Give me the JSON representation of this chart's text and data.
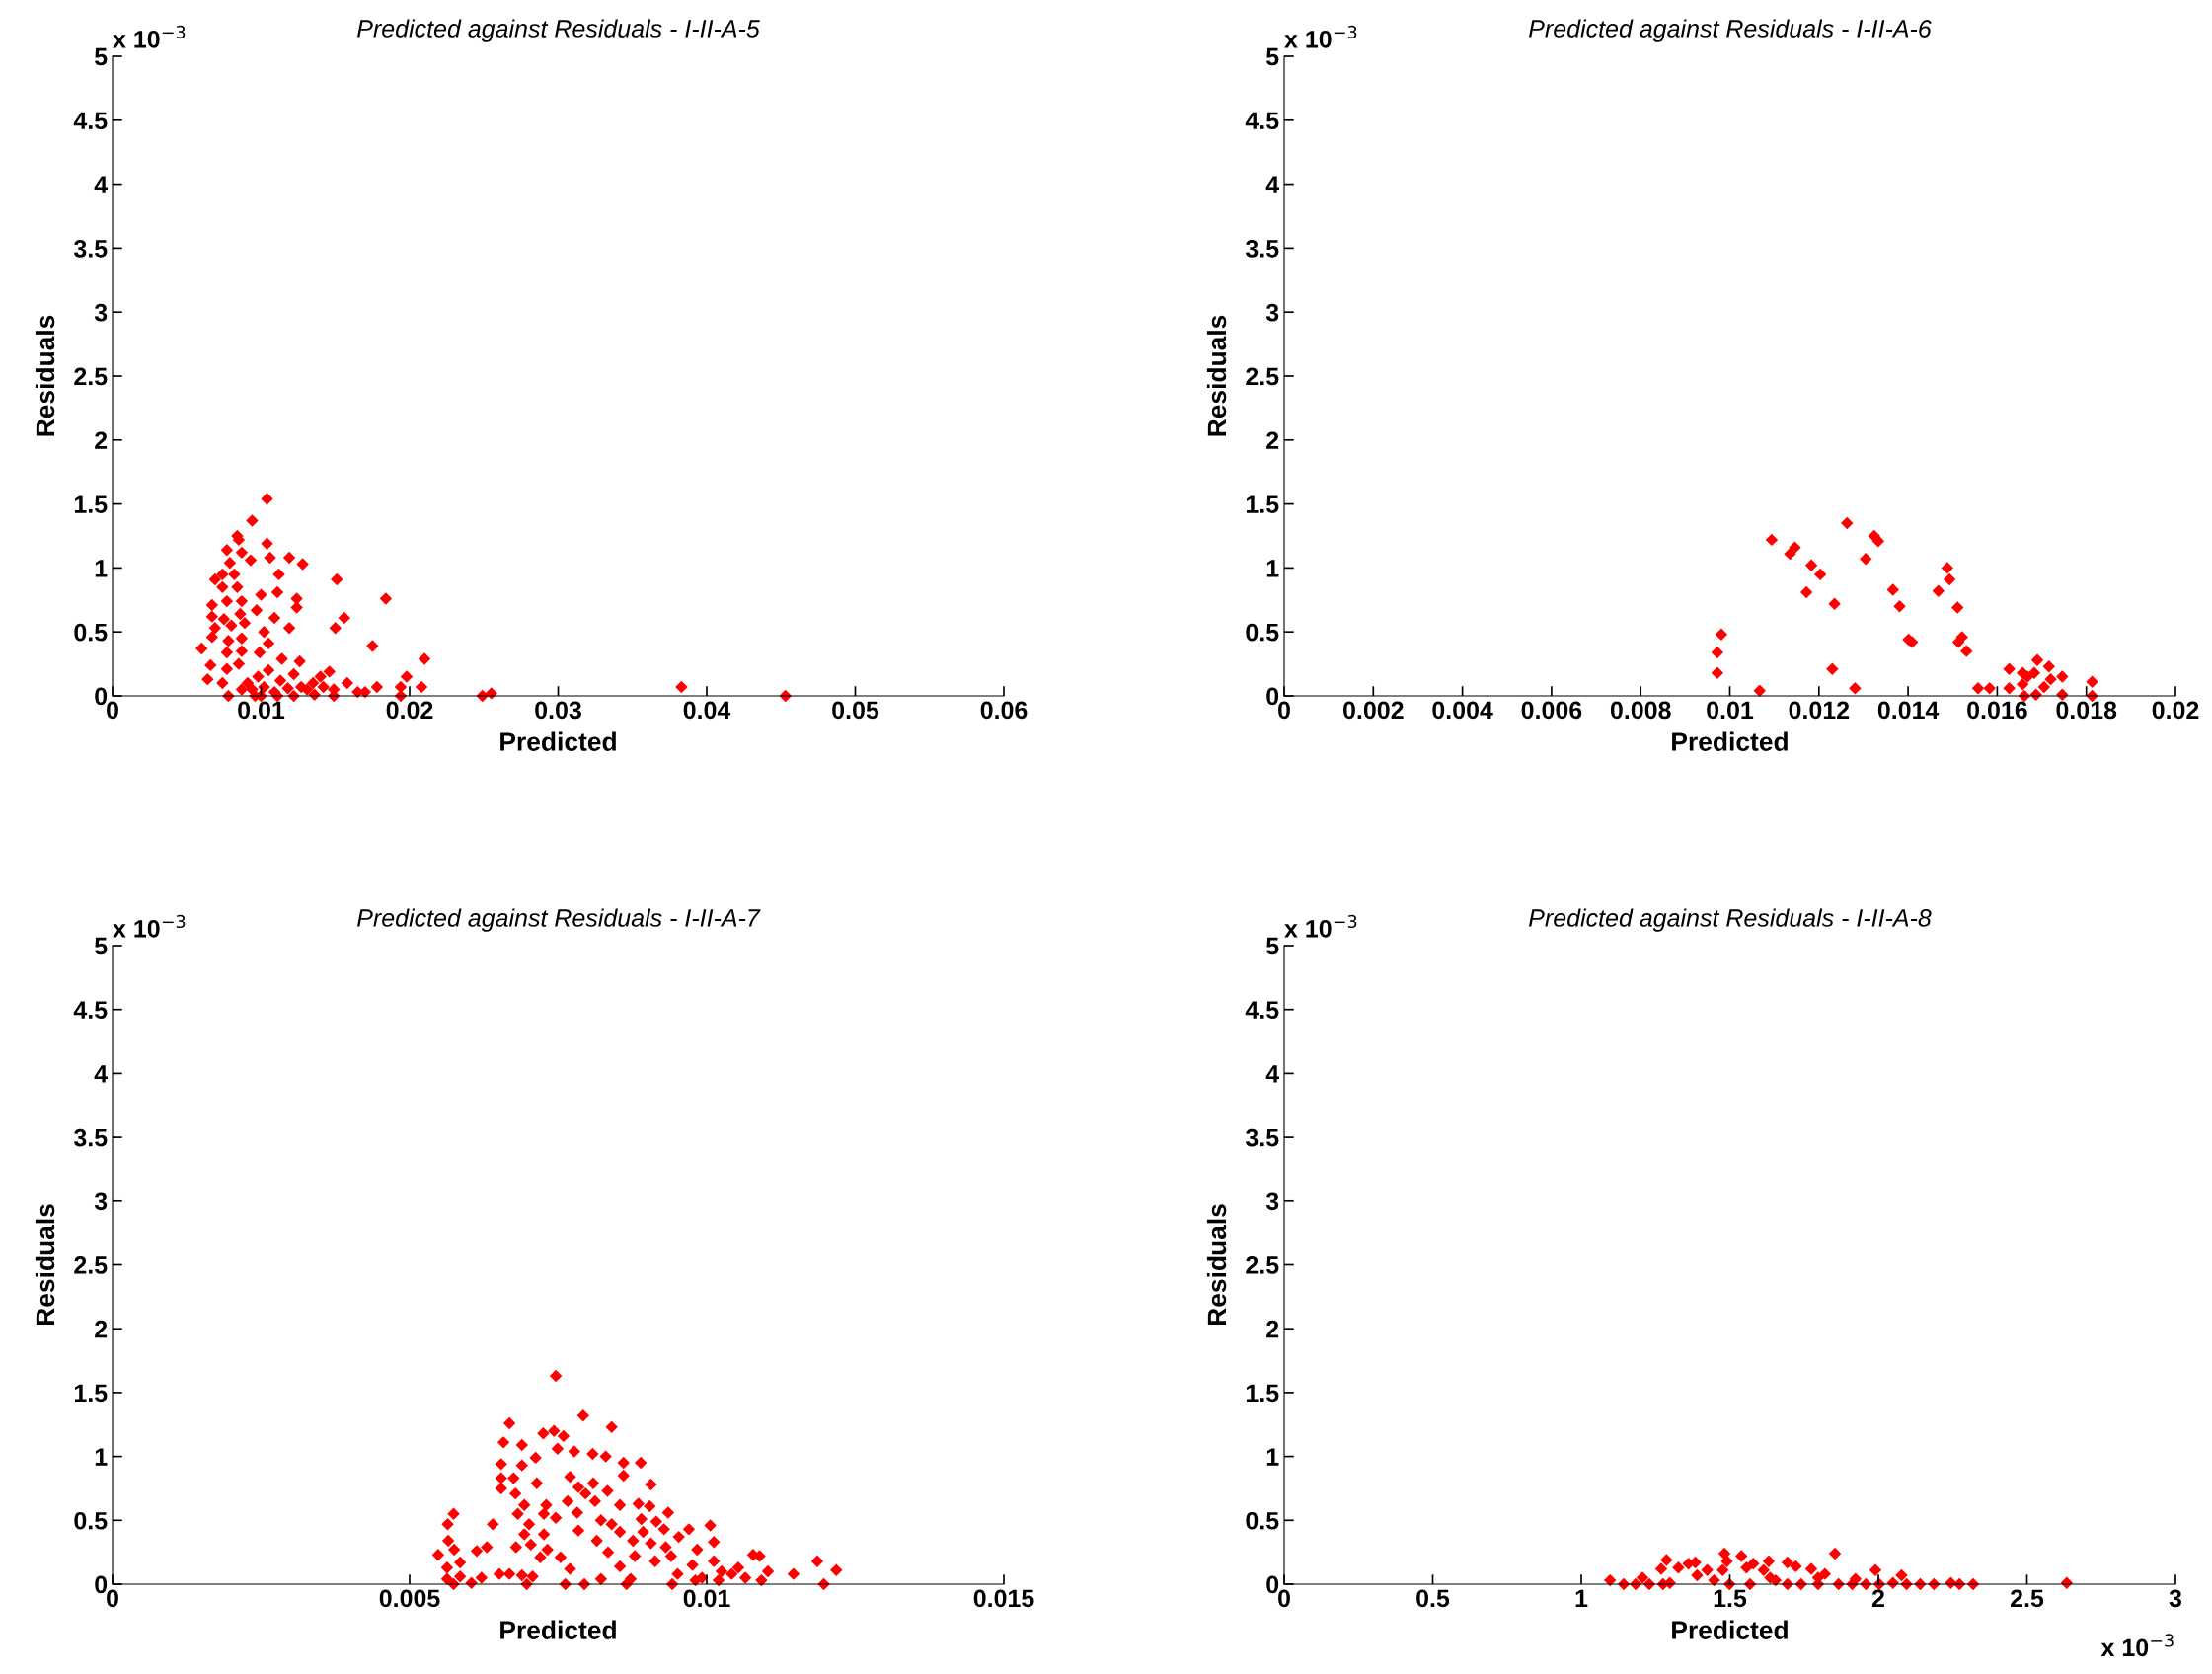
{
  "chart_data": [
    {
      "type": "scatter",
      "title": "Predicted against Residuals - I-II-A-5",
      "xlabel": "Predicted",
      "ylabel": "Residuals",
      "annotations": [
        "x 10$^{−3}$"
      ],
      "color": "#ff0000",
      "marker": "diamond",
      "grid": false,
      "xlim": [
        0,
        0.06
      ],
      "xticks": [
        0,
        0.01,
        0.02,
        0.03,
        0.04,
        0.05,
        0.06
      ],
      "ylim": [
        0,
        5
      ],
      "yticks": [
        0,
        0.5,
        1,
        1.5,
        2,
        2.5,
        3,
        3.5,
        4,
        4.5,
        5
      ],
      "x": [
        0.0104,
        0.0094,
        0.0084,
        0.0085,
        0.0104,
        0.0077,
        0.0087,
        0.0079,
        0.0093,
        0.0106,
        0.0119,
        0.0128,
        0.0069,
        0.0074,
        0.0082,
        0.0112,
        0.0151,
        0.0074,
        0.0084,
        0.01,
        0.0111,
        0.0124,
        0.0124,
        0.0184,
        0.0067,
        0.0077,
        0.0087,
        0.0067,
        0.0075,
        0.0086,
        0.0097,
        0.0109,
        0.0156,
        0.0069,
        0.008,
        0.0089,
        0.0119,
        0.015,
        0.0102,
        0.0067,
        0.0078,
        0.0087,
        0.006,
        0.0105,
        0.0175,
        0.0077,
        0.0087,
        0.0099,
        0.0066,
        0.0085,
        0.0114,
        0.0126,
        0.021,
        0.0077,
        0.0064,
        0.0146,
        0.0198,
        0.0074,
        0.0078,
        0.0091,
        0.0098,
        0.0105,
        0.0113,
        0.0122,
        0.0127,
        0.0135,
        0.014,
        0.0149,
        0.0096,
        0.0109,
        0.0122,
        0.0136,
        0.0149,
        0.0158,
        0.0165,
        0.017,
        0.0178,
        0.0194,
        0.0208,
        0.0194,
        0.0249,
        0.0255,
        0.0383,
        0.0453,
        0.0094,
        0.0102,
        0.0118,
        0.0131,
        0.0142,
        0.0087,
        0.01,
        0.0111
      ],
      "values": [
        1.54,
        1.37,
        1.25,
        1.22,
        1.19,
        1.14,
        1.12,
        1.04,
        1.06,
        1.08,
        1.08,
        1.03,
        0.91,
        0.95,
        0.95,
        0.95,
        0.91,
        0.85,
        0.85,
        0.79,
        0.81,
        0.76,
        0.69,
        0.76,
        0.71,
        0.74,
        0.74,
        0.62,
        0.6,
        0.64,
        0.67,
        0.61,
        0.61,
        0.53,
        0.55,
        0.57,
        0.53,
        0.53,
        0.5,
        0.46,
        0.43,
        0.45,
        0.37,
        0.41,
        0.39,
        0.34,
        0.35,
        0.34,
        0.24,
        0.25,
        0.29,
        0.27,
        0.29,
        0.21,
        0.13,
        0.19,
        0.15,
        0.1,
        0,
        0.1,
        0.15,
        0.2,
        0.12,
        0.17,
        0.07,
        0.1,
        0.15,
        0.05,
        0,
        0.03,
        0,
        0.01,
        0,
        0.1,
        0.03,
        0.03,
        0.07,
        0.07,
        0.07,
        0,
        0,
        0.02,
        0.07,
        0,
        0.05,
        0.07,
        0.06,
        0.05,
        0.07,
        0.05,
        0,
        0
      ]
    },
    {
      "type": "scatter",
      "title": "Predicted against Residuals - I-II-A-6",
      "xlabel": "Predicted",
      "ylabel": "Residuals",
      "annotations": [
        "x 10$^{−3}$"
      ],
      "color": "#ff0000",
      "marker": "diamond",
      "grid": false,
      "xlim": [
        0,
        0.02
      ],
      "xticks": [
        0,
        0.002,
        0.004,
        0.006,
        0.008,
        0.01,
        0.012,
        0.014,
        0.016,
        0.018,
        0.02
      ],
      "ylim": [
        0,
        5
      ],
      "yticks": [
        0,
        0.5,
        1,
        1.5,
        2,
        2.5,
        3,
        3.5,
        4,
        4.5,
        5
      ],
      "x": [
        0.00981,
        0.00972,
        0.00972,
        0.01067,
        0.01094,
        0.01135,
        0.01146,
        0.01183,
        0.01203,
        0.01172,
        0.01235,
        0.0123,
        0.01263,
        0.01305,
        0.01324,
        0.01333,
        0.01281,
        0.01366,
        0.01381,
        0.01401,
        0.01409,
        0.01468,
        0.01488,
        0.01493,
        0.01511,
        0.01513,
        0.01521,
        0.01531,
        0.01557,
        0.01583,
        0.01627,
        0.01627,
        0.01657,
        0.01657,
        0.01661,
        0.01668,
        0.01683,
        0.01687,
        0.0169,
        0.01705,
        0.01716,
        0.0172,
        0.01746,
        0.01746,
        0.01813,
        0.01813
      ],
      "values": [
        0.48,
        0.34,
        0.18,
        0.04,
        1.22,
        1.11,
        1.16,
        1.02,
        0.95,
        0.81,
        0.72,
        0.21,
        1.35,
        1.07,
        1.25,
        1.21,
        0.06,
        0.83,
        0.7,
        0.44,
        0.42,
        0.82,
        1.0,
        0.91,
        0.69,
        0.42,
        0.46,
        0.35,
        0.06,
        0.06,
        0.21,
        0.06,
        0.18,
        0.09,
        0,
        0.15,
        0.18,
        0.01,
        0.28,
        0.07,
        0.23,
        0.13,
        0.15,
        0.01,
        0.11,
        0
      ]
    },
    {
      "type": "scatter",
      "title": "Predicted against Residuals - I-II-A-7",
      "xlabel": "Predicted",
      "ylabel": "Residuals",
      "annotations": [
        "x 10$^{−3}$"
      ],
      "color": "#ff0000",
      "marker": "diamond",
      "grid": false,
      "xlim": [
        0,
        0.015
      ],
      "xticks": [
        0,
        0.005,
        0.01,
        0.015
      ],
      "ylim": [
        0,
        5
      ],
      "yticks": [
        0,
        0.5,
        1,
        1.5,
        2,
        2.5,
        3,
        3.5,
        4,
        4.5,
        5
      ],
      "x": [
        0.00746,
        0.00792,
        0.0084,
        0.00668,
        0.00658,
        0.00689,
        0.00725,
        0.00743,
        0.00759,
        0.00749,
        0.00777,
        0.00808,
        0.0083,
        0.00712,
        0.00654,
        0.00689,
        0.0086,
        0.00889,
        0.0086,
        0.00654,
        0.00675,
        0.00714,
        0.0077,
        0.00654,
        0.00678,
        0.00784,
        0.00809,
        0.00906,
        0.00796,
        0.00833,
        0.00693,
        0.0073,
        0.00766,
        0.00812,
        0.00854,
        0.00885,
        0.00904,
        0.00682,
        0.00726,
        0.00746,
        0.00782,
        0.00935,
        0.00574,
        0.00564,
        0.0064,
        0.00701,
        0.00822,
        0.0089,
        0.00915,
        0.0084,
        0.00693,
        0.00726,
        0.00784,
        0.00854,
        0.00893,
        0.00928,
        0.0097,
        0.01006,
        0.00565,
        0.00575,
        0.00704,
        0.00815,
        0.00876,
        0.00906,
        0.00931,
        0.00953,
        0.01012,
        0.0063,
        0.00613,
        0.00679,
        0.00732,
        0.00834,
        0.00548,
        0.0072,
        0.00754,
        0.00879,
        0.0094,
        0.00984,
        0.01078,
        0.01186,
        0.00585,
        0.00854,
        0.00913,
        0.00563,
        0.0077,
        0.01218,
        0.00585,
        0.00651,
        0.00668,
        0.00689,
        0.00707,
        0.00563,
        0.00604,
        0.00621,
        0.00574,
        0.00697,
        0.00762,
        0.00794,
        0.00822,
        0.00865,
        0.00872,
        0.00942,
        0.00951,
        0.00976,
        0.00992,
        0.01012,
        0.0102,
        0.01042,
        0.01065,
        0.01089,
        0.01092,
        0.01103,
        0.01146,
        0.01197,
        0.01025,
        0.01053,
        0.00981
      ],
      "values": [
        1.63,
        1.32,
        1.23,
        1.26,
        1.11,
        1.09,
        1.18,
        1.2,
        1.16,
        1.06,
        1.04,
        1.02,
        1.0,
        0.99,
        0.94,
        0.93,
        0.95,
        0.95,
        0.85,
        0.83,
        0.83,
        0.79,
        0.84,
        0.75,
        0.71,
        0.76,
        0.79,
        0.78,
        0.71,
        0.73,
        0.62,
        0.62,
        0.65,
        0.65,
        0.62,
        0.63,
        0.61,
        0.55,
        0.55,
        0.52,
        0.56,
        0.56,
        0.55,
        0.47,
        0.47,
        0.47,
        0.5,
        0.51,
        0.49,
        0.47,
        0.39,
        0.39,
        0.42,
        0.41,
        0.41,
        0.43,
        0.43,
        0.46,
        0.34,
        0.27,
        0.31,
        0.34,
        0.34,
        0.32,
        0.29,
        0.37,
        0.33,
        0.29,
        0.26,
        0.29,
        0.27,
        0.25,
        0.23,
        0.21,
        0.21,
        0.22,
        0.22,
        0.27,
        0.23,
        0.18,
        0.17,
        0.14,
        0.18,
        0.13,
        0.12,
        0.11,
        0.06,
        0.08,
        0.08,
        0.07,
        0.06,
        0.04,
        0.01,
        0.05,
        0,
        0,
        0,
        0,
        0.04,
        0,
        0.04,
        0,
        0.08,
        0.15,
        0.05,
        0.18,
        0.03,
        0.08,
        0.05,
        0.22,
        0.03,
        0.1,
        0.08,
        0,
        0.1,
        0.13,
        0.03
      ]
    },
    {
      "type": "scatter",
      "title": "Predicted against Residuals - I-II-A-8",
      "xlabel": "Predicted",
      "ylabel": "Residuals",
      "annotations": [
        "x 10$^{−3}$",
        "x 10$^{−3}$"
      ],
      "color": "#ff0000",
      "marker": "diamond",
      "grid": false,
      "xlim": [
        0,
        3
      ],
      "xticks": [
        0,
        0.5,
        1,
        1.5,
        2,
        2.5,
        3
      ],
      "ylim": [
        0,
        5
      ],
      "yticks": [
        0,
        0.5,
        1,
        1.5,
        2,
        2.5,
        3,
        3.5,
        4,
        4.5,
        5
      ],
      "x": [
        1.097,
        1.143,
        1.183,
        1.206,
        1.229,
        1.275,
        1.269,
        1.287,
        1.298,
        1.327,
        1.361,
        1.384,
        1.39,
        1.424,
        1.447,
        1.482,
        1.49,
        1.476,
        1.499,
        1.539,
        1.556,
        1.568,
        1.579,
        1.614,
        1.631,
        1.654,
        1.694,
        1.722,
        1.694,
        1.74,
        1.774,
        1.797,
        1.82,
        1.854,
        1.866,
        1.912,
        1.923,
        1.99,
        2.003,
        2.049,
        2.078,
        2.095,
        2.141,
        2.187,
        2.244,
        2.273,
        2.319,
        2.634,
        1.636,
        1.797,
        1.958
      ],
      "values": [
        0.03,
        0,
        0,
        0.05,
        0,
        0,
        0.12,
        0.19,
        0.01,
        0.13,
        0.16,
        0.17,
        0.07,
        0.11,
        0.03,
        0.24,
        0.18,
        0.11,
        0,
        0.22,
        0.13,
        0,
        0.16,
        0.11,
        0.18,
        0.03,
        0.17,
        0.14,
        0,
        0,
        0.12,
        0,
        0.08,
        0.24,
        0,
        0,
        0.04,
        0.11,
        0,
        0.01,
        0.07,
        0,
        0,
        0,
        0.01,
        0,
        0,
        0.01,
        0.05,
        0.05,
        0
      ]
    }
  ]
}
